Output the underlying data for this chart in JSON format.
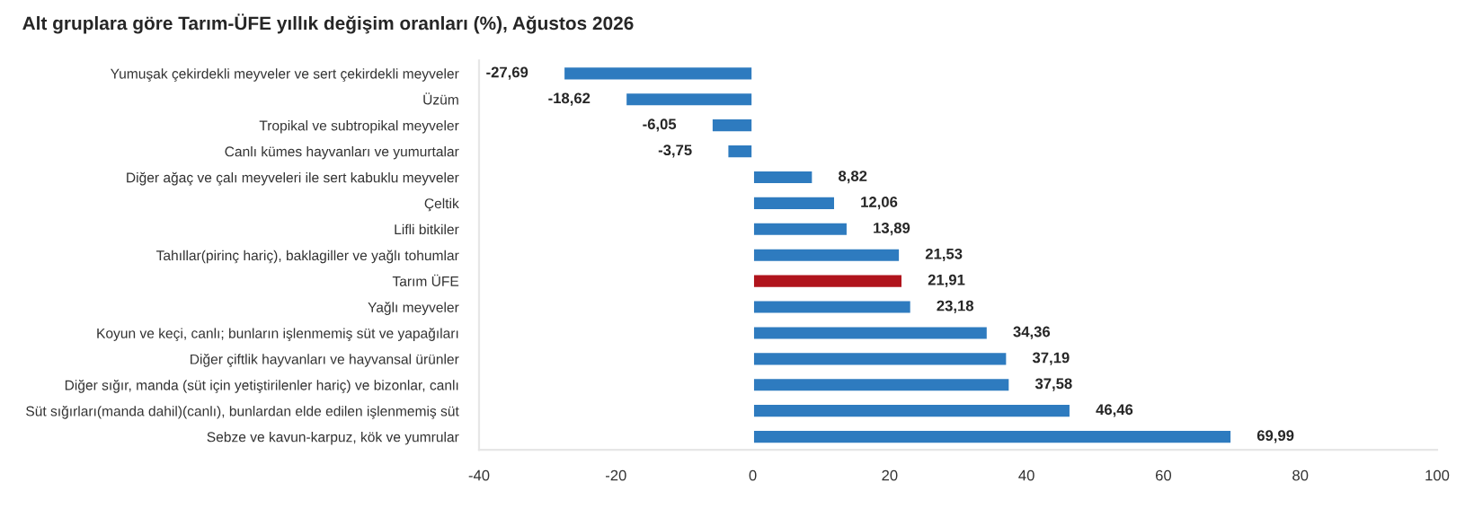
{
  "chart_data": {
    "type": "bar",
    "orientation": "horizontal",
    "title": "Alt gruplara göre Tarım-ÜFE yıllık değişim oranları (%), Ağustos 2026",
    "categories": [
      "Yumuşak çekirdekli meyveler ve sert çekirdekli meyveler",
      "Üzüm",
      "Tropikal ve subtropikal meyveler",
      "Canlı kümes hayvanları ve yumurtalar",
      "Diğer ağaç ve çalı meyveleri ile sert kabuklu meyveler",
      "Çeltik",
      "Lifli bitkiler",
      "Tahıllar(pirinç hariç), baklagiller ve yağlı tohumlar",
      "Tarım ÜFE",
      "Yağlı meyveler",
      "Koyun ve keçi, canlı; bunların işlenmemiş süt ve yapağıları",
      "Diğer çiftlik hayvanları ve hayvansal ürünler",
      "Diğer sığır, manda (süt için yetiştirilenler hariç) ve bizonlar, canlı",
      "Süt sığırları(manda dahil)(canlı), bunlardan elde edilen işlenmemiş süt",
      "Sebze ve kavun-karpuz, kök ve yumrular"
    ],
    "values": [
      -27.69,
      -18.62,
      -6.05,
      -3.75,
      8.82,
      12.06,
      13.89,
      21.53,
      21.91,
      23.18,
      34.36,
      37.19,
      37.58,
      46.46,
      69.99
    ],
    "value_labels": [
      "-27,69",
      "-18,62",
      "-6,05",
      "-3,75",
      "8,82",
      "12,06",
      "13,89",
      "21,53",
      "21,91",
      "23,18",
      "34,36",
      "37,19",
      "37,58",
      "46,46",
      "69,99"
    ],
    "colors": [
      "#2e7bbf",
      "#2e7bbf",
      "#2e7bbf",
      "#2e7bbf",
      "#2e7bbf",
      "#2e7bbf",
      "#2e7bbf",
      "#2e7bbf",
      "#b0141c",
      "#2e7bbf",
      "#2e7bbf",
      "#2e7bbf",
      "#2e7bbf",
      "#2e7bbf",
      "#2e7bbf"
    ],
    "xlim": [
      -40,
      100
    ],
    "xticks": [
      -40,
      -20,
      0,
      20,
      40,
      60,
      80,
      100
    ],
    "grid": false,
    "legend": false
  }
}
